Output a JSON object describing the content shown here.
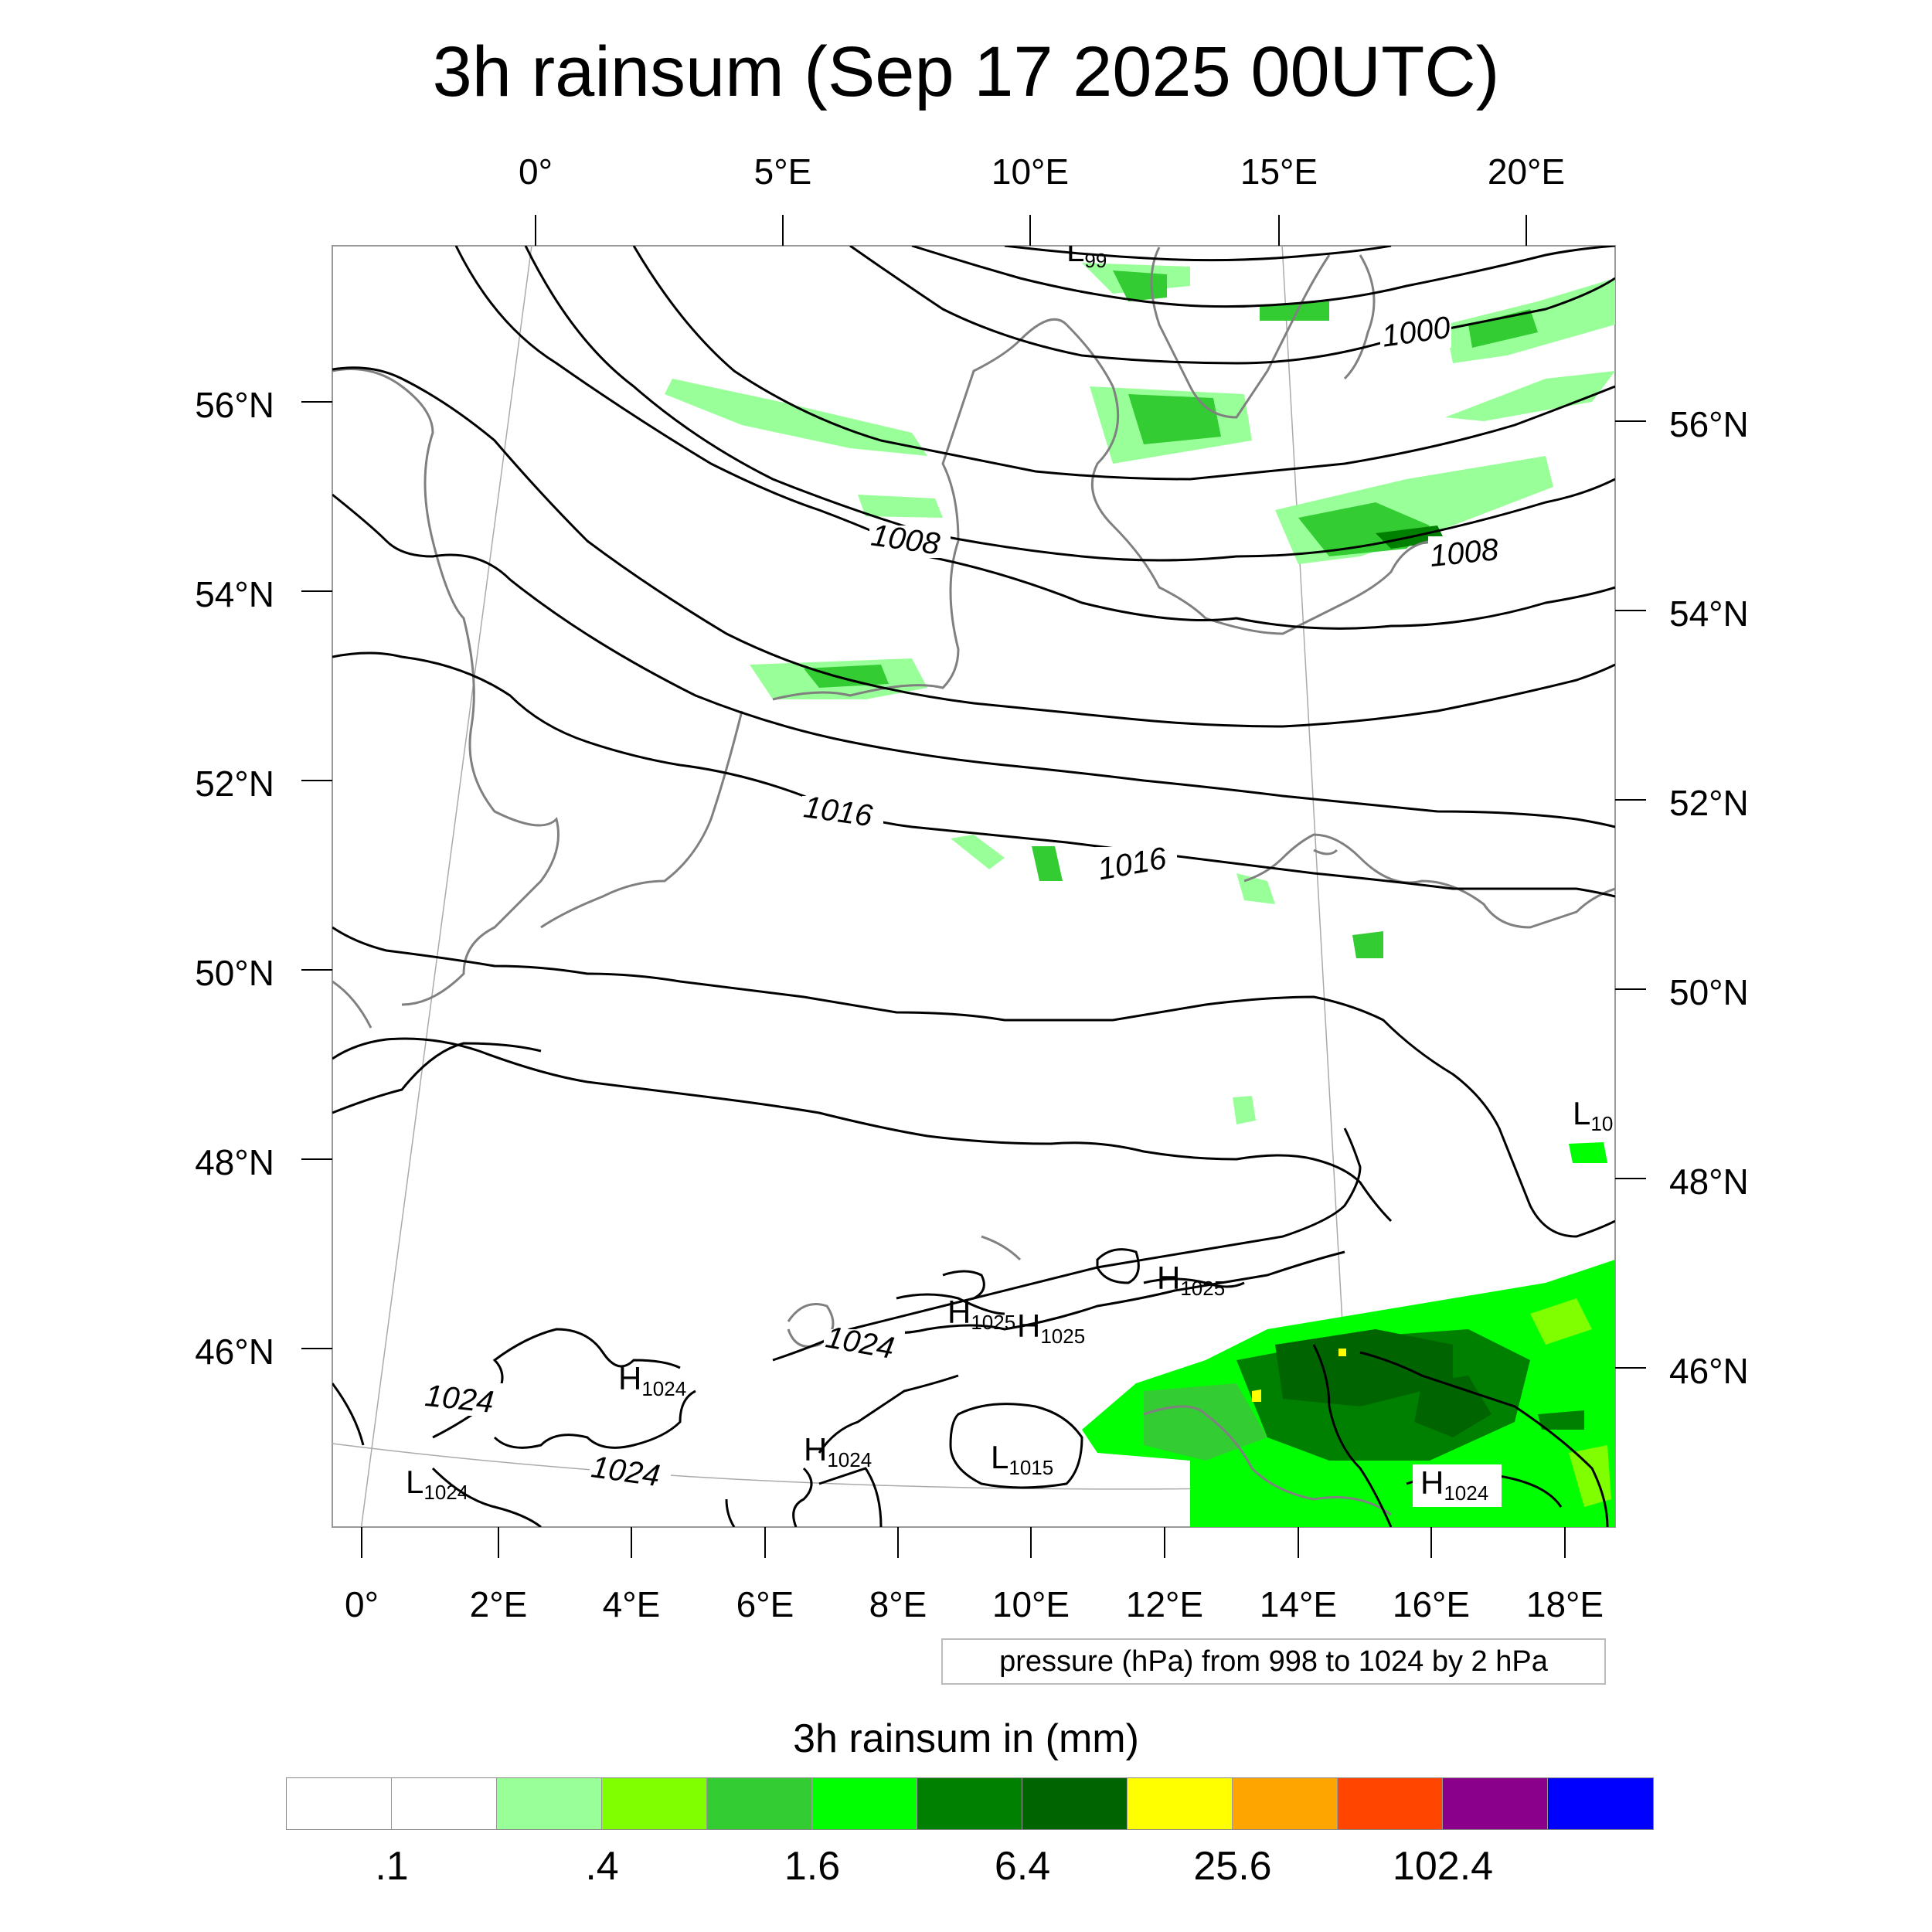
{
  "title": "3h rainsum (Sep 17 2025 00UTC)",
  "top_axis_labels": [
    "0°",
    "5°E",
    "10°E",
    "15°E",
    "20°E"
  ],
  "bottom_axis_labels": [
    "0°",
    "2°E",
    "4°E",
    "6°E",
    "8°E",
    "10°E",
    "12°E",
    "14°E",
    "16°E",
    "18°E"
  ],
  "left_axis_labels": [
    "56°N",
    "54°N",
    "52°N",
    "50°N",
    "48°N",
    "46°N"
  ],
  "right_axis_labels": [
    "56°N",
    "54°N",
    "52°N",
    "50°N",
    "48°N",
    "46°N"
  ],
  "isobar_labels": [
    "1000",
    "1008",
    "1008",
    "1016",
    "1016",
    "1024",
    "1024",
    "1024"
  ],
  "pressure_centers": [
    {
      "letter": "L",
      "value": "99"
    },
    {
      "letter": "L",
      "value": "10"
    },
    {
      "letter": "H",
      "value": "1025"
    },
    {
      "letter": "H",
      "value": "1025"
    },
    {
      "letter": "H",
      "value": "1025"
    },
    {
      "letter": "H",
      "value": "1024"
    },
    {
      "letter": "H",
      "value": "1024"
    },
    {
      "letter": "L",
      "value": "1015"
    },
    {
      "letter": "L",
      "value": "1024"
    },
    {
      "letter": "H",
      "value": "1024"
    }
  ],
  "contour_note": "pressure (hPa) from 998 to 1024 by 2 hPa",
  "colorbar": {
    "title": "3h rainsum in (mm)",
    "colors": [
      "#ffffff",
      "#ffffff",
      "#99ff99",
      "#80ff00",
      "#33cc33",
      "#00ff00",
      "#008000",
      "#006400",
      "#ffff00",
      "#ffa500",
      "#ff4500",
      "#8b008b",
      "#0000ff"
    ],
    "tick_labels": [
      ".1",
      ".4",
      "1.6",
      "6.4",
      "25.6",
      "102.4"
    ]
  },
  "colors": {
    "isobar": "#000000",
    "coastline": "#808080",
    "graticule": "#aaaaaa"
  }
}
